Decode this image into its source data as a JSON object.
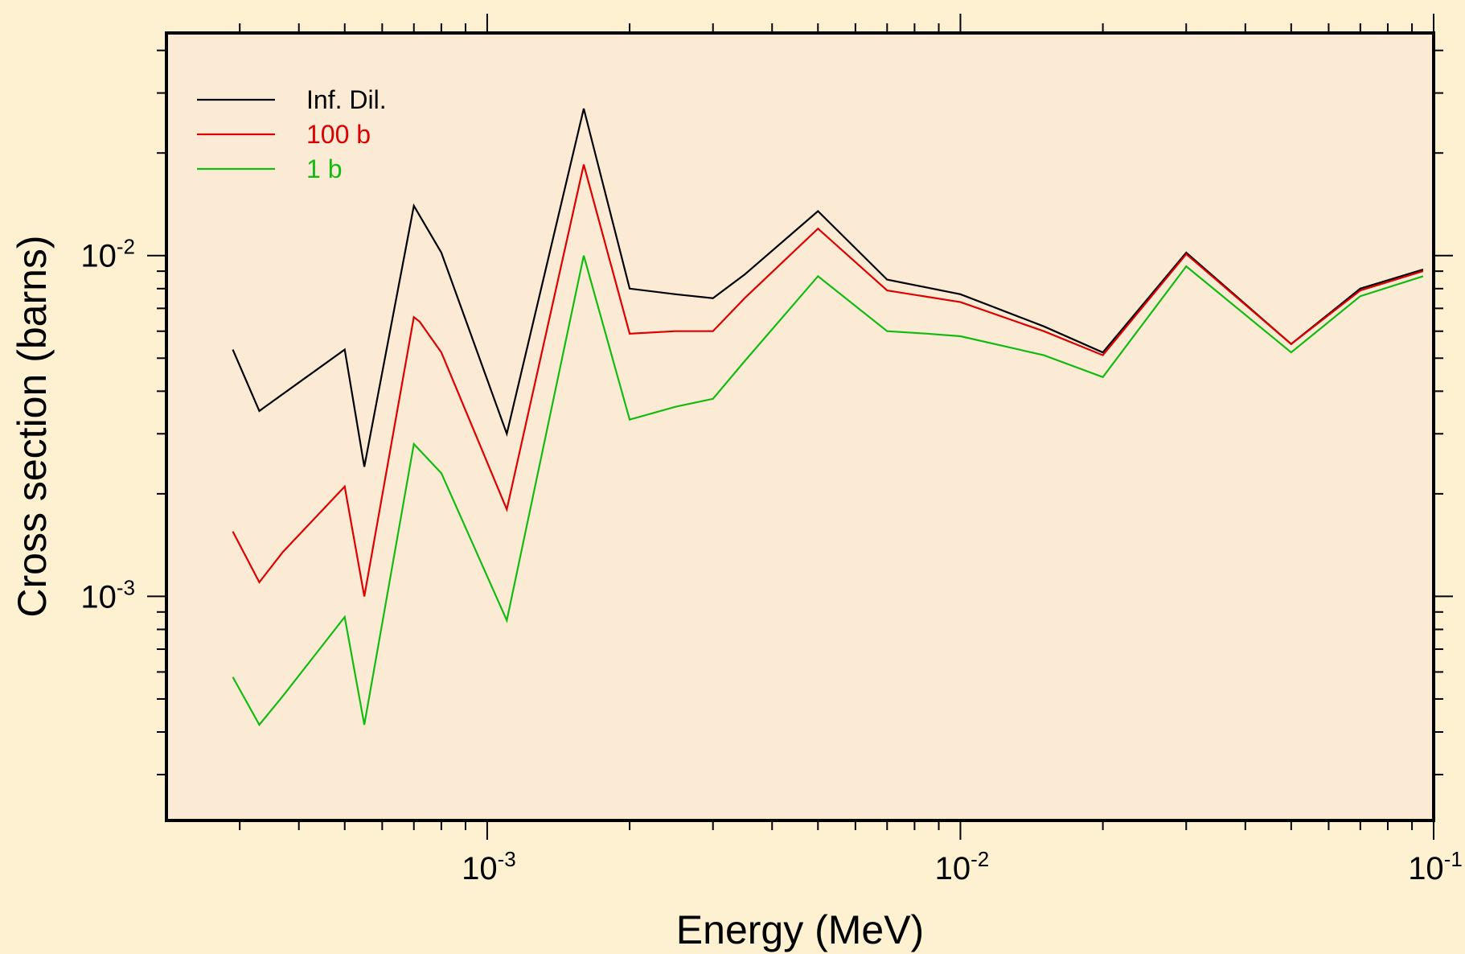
{
  "chart_data": {
    "type": "line",
    "xlabel": "Energy (MeV)",
    "ylabel": "Cross section (barns)",
    "x_scale": "log",
    "y_scale": "log",
    "xlim": [
      0.00021,
      0.1
    ],
    "ylim": [
      0.00022,
      0.045
    ],
    "x_ticks": [
      {
        "value": 0.001,
        "base": "10",
        "exp": "-3"
      },
      {
        "value": 0.01,
        "base": "10",
        "exp": "-2"
      },
      {
        "value": 0.1,
        "base": "10",
        "exp": "-1"
      }
    ],
    "y_ticks": [
      {
        "value": 0.001,
        "base": "10",
        "exp": "-3"
      },
      {
        "value": 0.01,
        "base": "10",
        "exp": "-2"
      }
    ],
    "grid": false,
    "legend_position": "top-left",
    "series": [
      {
        "name": "Inf. Dil.",
        "color": "#000000",
        "points": [
          [
            0.00029,
            0.0053
          ],
          [
            0.00033,
            0.0035
          ],
          [
            0.0005,
            0.0053
          ],
          [
            0.00055,
            0.0024
          ],
          [
            0.0007,
            0.014
          ],
          [
            0.0008,
            0.0102
          ],
          [
            0.0011,
            0.003
          ],
          [
            0.0016,
            0.027
          ],
          [
            0.002,
            0.008
          ],
          [
            0.0025,
            0.0077
          ],
          [
            0.003,
            0.0075
          ],
          [
            0.0035,
            0.0088
          ],
          [
            0.005,
            0.0135
          ],
          [
            0.007,
            0.0085
          ],
          [
            0.01,
            0.0077
          ],
          [
            0.015,
            0.0062
          ],
          [
            0.02,
            0.0052
          ],
          [
            0.03,
            0.0102
          ],
          [
            0.05,
            0.0055
          ],
          [
            0.07,
            0.008
          ],
          [
            0.095,
            0.0091
          ]
        ]
      },
      {
        "name": "100 b",
        "color": "#dd0000",
        "points": [
          [
            0.00029,
            0.00155
          ],
          [
            0.00033,
            0.0011
          ],
          [
            0.00037,
            0.00135
          ],
          [
            0.0005,
            0.0021
          ],
          [
            0.00055,
            0.001
          ],
          [
            0.0007,
            0.0066
          ],
          [
            0.00072,
            0.0064
          ],
          [
            0.0008,
            0.0052
          ],
          [
            0.0011,
            0.0018
          ],
          [
            0.0016,
            0.0185
          ],
          [
            0.002,
            0.0059
          ],
          [
            0.0025,
            0.006
          ],
          [
            0.003,
            0.006
          ],
          [
            0.0035,
            0.0075
          ],
          [
            0.005,
            0.012
          ],
          [
            0.007,
            0.0079
          ],
          [
            0.01,
            0.0073
          ],
          [
            0.015,
            0.006
          ],
          [
            0.02,
            0.0051
          ],
          [
            0.03,
            0.0101
          ],
          [
            0.05,
            0.0055
          ],
          [
            0.07,
            0.0079
          ],
          [
            0.095,
            0.009
          ]
        ]
      },
      {
        "name": "1 b",
        "color": "#11bb11",
        "points": [
          [
            0.00029,
            0.00058
          ],
          [
            0.00033,
            0.00042
          ],
          [
            0.00037,
            0.00051
          ],
          [
            0.0005,
            0.00087
          ],
          [
            0.00055,
            0.00042
          ],
          [
            0.0007,
            0.0028
          ],
          [
            0.0008,
            0.0023
          ],
          [
            0.0011,
            0.00085
          ],
          [
            0.0016,
            0.01
          ],
          [
            0.002,
            0.0033
          ],
          [
            0.0025,
            0.0036
          ],
          [
            0.003,
            0.0038
          ],
          [
            0.0035,
            0.0049
          ],
          [
            0.005,
            0.0087
          ],
          [
            0.007,
            0.006
          ],
          [
            0.0085,
            0.0059
          ],
          [
            0.01,
            0.0058
          ],
          [
            0.015,
            0.0051
          ],
          [
            0.02,
            0.0044
          ],
          [
            0.03,
            0.0093
          ],
          [
            0.05,
            0.0052
          ],
          [
            0.07,
            0.0076
          ],
          [
            0.095,
            0.0087
          ]
        ]
      }
    ]
  }
}
